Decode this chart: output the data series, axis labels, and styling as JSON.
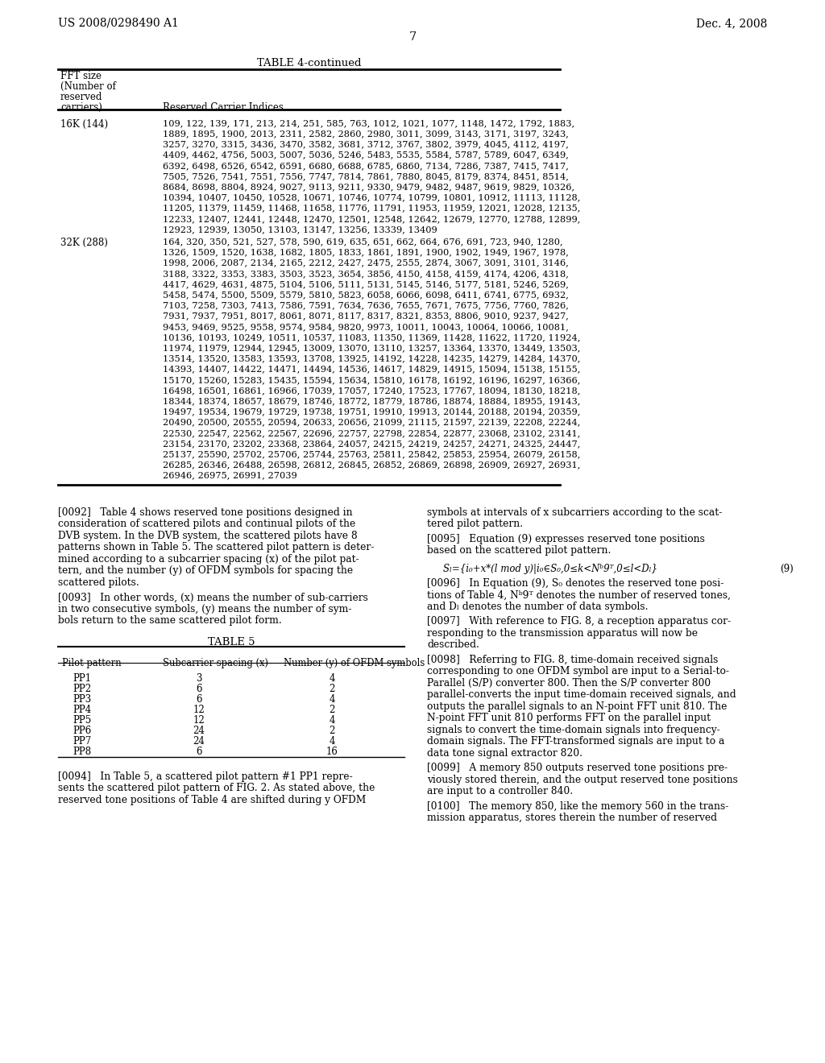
{
  "header_left": "US 2008/0298490 A1",
  "header_right": "Dec. 4, 2008",
  "page_number": "7",
  "table4_title": "TABLE 4-continued",
  "col1_header_lines": [
    "FFT size",
    "(Number of",
    "reserved",
    "carriers)"
  ],
  "col2_header": "Reserved Carrier Indices",
  "row1_label": "16K (144)",
  "row1_lines": [
    "109, 122, 139, 171, 213, 214, 251, 585, 763, 1012, 1021, 1077, 1148, 1472, 1792, 1883,",
    "1889, 1895, 1900, 2013, 2311, 2582, 2860, 2980, 3011, 3099, 3143, 3171, 3197, 3243,",
    "3257, 3270, 3315, 3436, 3470, 3582, 3681, 3712, 3767, 3802, 3979, 4045, 4112, 4197,",
    "4409, 4462, 4756, 5003, 5007, 5036, 5246, 5483, 5535, 5584, 5787, 5789, 6047, 6349,",
    "6392, 6498, 6526, 6542, 6591, 6680, 6688, 6785, 6860, 7134, 7286, 7387, 7415, 7417,",
    "7505, 7526, 7541, 7551, 7556, 7747, 7814, 7861, 7880, 8045, 8179, 8374, 8451, 8514,",
    "8684, 8698, 8804, 8924, 9027, 9113, 9211, 9330, 9479, 9482, 9487, 9619, 9829, 10326,",
    "10394, 10407, 10450, 10528, 10671, 10746, 10774, 10799, 10801, 10912, 11113, 11128,",
    "11205, 11379, 11459, 11468, 11658, 11776, 11791, 11953, 11959, 12021, 12028, 12135,",
    "12233, 12407, 12441, 12448, 12470, 12501, 12548, 12642, 12679, 12770, 12788, 12899,",
    "12923, 12939, 13050, 13103, 13147, 13256, 13339, 13409"
  ],
  "row2_label": "32K (288)",
  "row2_lines": [
    "164, 320, 350, 521, 527, 578, 590, 619, 635, 651, 662, 664, 676, 691, 723, 940, 1280,",
    "1326, 1509, 1520, 1638, 1682, 1805, 1833, 1861, 1891, 1900, 1902, 1949, 1967, 1978,",
    "1998, 2006, 2087, 2134, 2165, 2212, 2427, 2475, 2555, 2874, 3067, 3091, 3101, 3146,",
    "3188, 3322, 3353, 3383, 3503, 3523, 3654, 3856, 4150, 4158, 4159, 4174, 4206, 4318,",
    "4417, 4629, 4631, 4875, 5104, 5106, 5111, 5131, 5145, 5146, 5177, 5181, 5246, 5269,",
    "5458, 5474, 5500, 5509, 5579, 5810, 5823, 6058, 6066, 6098, 6411, 6741, 6775, 6932,",
    "7103, 7258, 7303, 7413, 7586, 7591, 7634, 7636, 7655, 7671, 7675, 7756, 7760, 7826,",
    "7931, 7937, 7951, 8017, 8061, 8071, 8117, 8317, 8321, 8353, 8806, 9010, 9237, 9427,",
    "9453, 9469, 9525, 9558, 9574, 9584, 9820, 9973, 10011, 10043, 10064, 10066, 10081,",
    "10136, 10193, 10249, 10511, 10537, 11083, 11350, 11369, 11428, 11622, 11720, 11924,",
    "11974, 11979, 12944, 12945, 13009, 13070, 13110, 13257, 13364, 13370, 13449, 13503,",
    "13514, 13520, 13583, 13593, 13708, 13925, 14192, 14228, 14235, 14279, 14284, 14370,",
    "14393, 14407, 14422, 14471, 14494, 14536, 14617, 14829, 14915, 15094, 15138, 15155,",
    "15170, 15260, 15283, 15435, 15594, 15634, 15810, 16178, 16192, 16196, 16297, 16366,",
    "16498, 16501, 16861, 16966, 17039, 17057, 17240, 17523, 17767, 18094, 18130, 18218,",
    "18344, 18374, 18657, 18679, 18746, 18772, 18779, 18786, 18874, 18884, 18955, 19143,",
    "19497, 19534, 19679, 19729, 19738, 19751, 19910, 19913, 20144, 20188, 20194, 20359,",
    "20490, 20500, 20555, 20594, 20633, 20656, 21099, 21115, 21597, 22139, 22208, 22244,",
    "22530, 22547, 22562, 22567, 22696, 22757, 22798, 22854, 22877, 23068, 23102, 23141,",
    "23154, 23170, 23202, 23368, 23864, 24057, 24215, 24219, 24257, 24271, 24325, 24447,",
    "25137, 25590, 25702, 25706, 25744, 25763, 25811, 25842, 25853, 25954, 26079, 26158,",
    "26285, 26346, 26488, 26598, 26812, 26845, 26852, 26869, 26898, 26909, 26927, 26931,",
    "26946, 26975, 26991, 27039"
  ],
  "left_col_paras": {
    "p0092": [
      "[0092]   Table 4 shows reserved tone positions designed in",
      "consideration of scattered pilots and continual pilots of the",
      "DVB system. In the DVB system, the scattered pilots have 8",
      "patterns shown in Table 5. The scattered pilot pattern is deter-",
      "mined according to a subcarrier spacing (x) of the pilot pat-",
      "tern, and the number (y) of OFDM symbols for spacing the",
      "scattered pilots."
    ],
    "p0093": [
      "[0093]   In other words, (x) means the number of sub-carriers",
      "in two consecutive symbols, (y) means the number of sym-",
      "bols return to the same scattered pilot form."
    ],
    "p0094": [
      "[0094]   In Table 5, a scattered pilot pattern #1 PP1 repre-",
      "sents the scattered pilot pattern of FIG. 2. As stated above, the",
      "reserved tone positions of Table 4 are shifted during y OFDM"
    ]
  },
  "table5_title": "TABLE 5",
  "table5_col1": "Pilot pattern",
  "table5_col2": "Subcarrier spacing (x)",
  "table5_col3": "Number (y) of OFDM symbols",
  "table5_rows": [
    [
      "PP1",
      "3",
      "4"
    ],
    [
      "PP2",
      "6",
      "2"
    ],
    [
      "PP3",
      "6",
      "4"
    ],
    [
      "PP4",
      "12",
      "2"
    ],
    [
      "PP5",
      "12",
      "4"
    ],
    [
      "PP6",
      "24",
      "2"
    ],
    [
      "PP7",
      "24",
      "4"
    ],
    [
      "PP8",
      "6",
      "16"
    ]
  ],
  "right_col_paras": {
    "p0094cont": [
      "symbols at intervals of x subcarriers according to the scat-",
      "tered pilot pattern."
    ],
    "p0095": [
      "[0095]   Equation (9) expresses reserved tone positions",
      "based on the scattered pilot pattern."
    ],
    "p0096": [
      "[0096]   In Equation (9), S₀ denotes the reserved tone posi-",
      "tions of Table 4, Nᵇ9ᵀ denotes the number of reserved tones,",
      "and Dₗ denotes the number of data symbols."
    ],
    "p0097": [
      "[0097]   With reference to FIG. 8, a reception apparatus cor-",
      "responding to the transmission apparatus will now be",
      "described."
    ],
    "p0098": [
      "[0098]   Referring to FIG. 8, time-domain received signals",
      "corresponding to one OFDM symbol are input to a Serial-to-",
      "Parallel (S/P) converter 800. Then the S/P converter 800",
      "parallel-converts the input time-domain received signals, and",
      "outputs the parallel signals to an N-point FFT unit 810. The",
      "N-point FFT unit 810 performs FFT on the parallel input",
      "signals to convert the time-domain signals into frequency-",
      "domain signals. The FFT-transformed signals are input to a",
      "data tone signal extractor 820."
    ],
    "p0099": [
      "[0099]   A memory 850 outputs reserved tone positions pre-",
      "viously stored therein, and the output reserved tone positions",
      "are input to a controller 840."
    ],
    "p0100": [
      "[0100]   The memory 850, like the memory 560 in the trans-",
      "mission apparatus, stores therein the number of reserved"
    ]
  },
  "equation_text": "Sₗ={i₀+x*(l mod y)|i₀∈S₀,0≤k<Nᵇ9ᵀ,0≤l<Dₗ}",
  "equation_label": "(9)"
}
